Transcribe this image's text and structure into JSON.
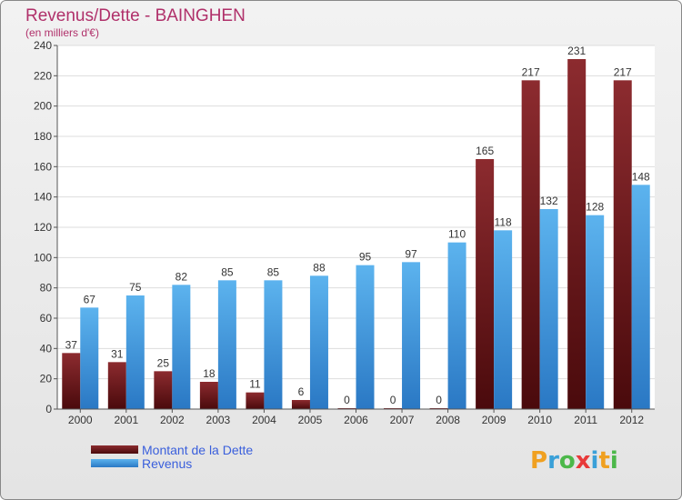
{
  "chart_data": {
    "type": "bar",
    "title": "Revenus/Dette - BAINGHEN",
    "subtitle": "(en milliers d'€)",
    "categories": [
      "2000",
      "2001",
      "2002",
      "2003",
      "2004",
      "2005",
      "2006",
      "2007",
      "2008",
      "2009",
      "2010",
      "2011",
      "2012"
    ],
    "series": [
      {
        "name": "Montant de la Dette",
        "color": "#7a1f22",
        "values": [
          37,
          31,
          25,
          18,
          11,
          6,
          0,
          0,
          0,
          165,
          217,
          231,
          217
        ]
      },
      {
        "name": "Revenus",
        "color": "#3f9fe2",
        "values": [
          67,
          75,
          82,
          85,
          85,
          88,
          95,
          97,
          110,
          118,
          132,
          128,
          148
        ]
      }
    ],
    "ylim": [
      0,
      240
    ],
    "yticks": [
      0,
      20,
      40,
      60,
      80,
      100,
      120,
      140,
      160,
      180,
      200,
      220,
      240
    ],
    "grid": true,
    "legend": "bottom-left",
    "colors": {
      "title": "#b0306a",
      "subtitle": "#b0306a",
      "legend_text": "#3a5fdc",
      "grid": "#dddddd",
      "frame": "#666666"
    }
  },
  "logo": {
    "text": "Proxiti"
  }
}
